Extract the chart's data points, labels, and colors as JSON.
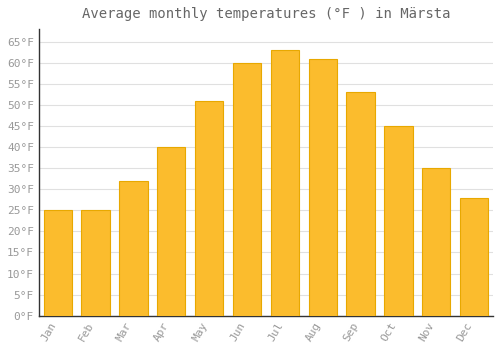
{
  "title": "Average monthly temperatures (°F ) in Märsta",
  "months": [
    "Jan",
    "Feb",
    "Mar",
    "Apr",
    "May",
    "Jun",
    "Jul",
    "Aug",
    "Sep",
    "Oct",
    "Nov",
    "Dec"
  ],
  "values": [
    25,
    25,
    32,
    40,
    51,
    60,
    63,
    61,
    53,
    45,
    35,
    28
  ],
  "bar_color": "#FBBC2D",
  "bar_edge_color": "#E8A800",
  "background_color": "#ffffff",
  "grid_color": "#e0e0e0",
  "ylim": [
    0,
    68
  ],
  "yticks": [
    0,
    5,
    10,
    15,
    20,
    25,
    30,
    35,
    40,
    45,
    50,
    55,
    60,
    65
  ],
  "tick_label_color": "#999999",
  "title_color": "#666666",
  "title_fontsize": 10,
  "axis_label_fontsize": 8,
  "font_family": "monospace"
}
